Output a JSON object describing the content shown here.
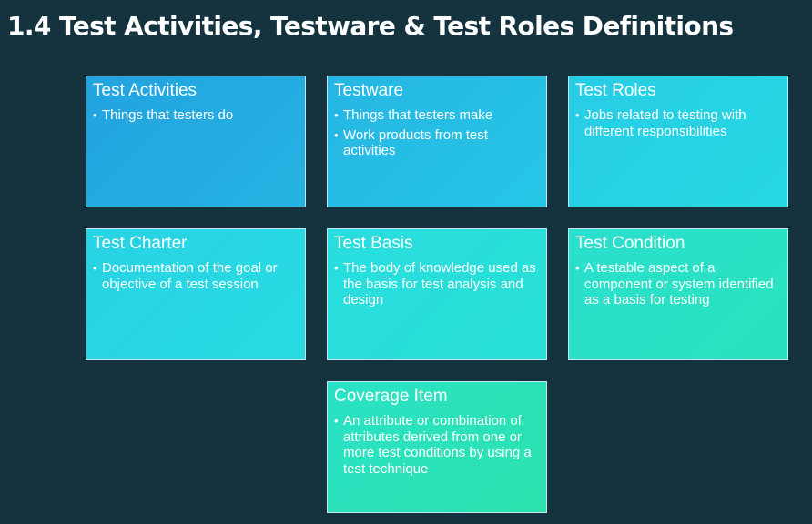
{
  "title": "1.4 Test Activities, Testware & Test Roles Definitions",
  "bullet_glyph": "•",
  "cards": [
    {
      "title": "Test Activities",
      "items": [
        "Things that testers do"
      ]
    },
    {
      "title": "Testware",
      "items": [
        "Things that testers make",
        "Work products from test activities"
      ]
    },
    {
      "title": "Test Roles",
      "items": [
        "Jobs related to testing with different responsibilities"
      ]
    },
    {
      "title": "Test Charter",
      "items": [
        "Documentation of the goal or objective of a test session"
      ]
    },
    {
      "title": "Test Basis",
      "items": [
        "The body of knowledge used as the basis for test analysis and design"
      ]
    },
    {
      "title": "Test Condition",
      "items": [
        "A testable aspect of a component or system identified as a basis for testing"
      ]
    },
    {
      "title": "Coverage Item",
      "items": [
        "An attribute or combination of attributes derived from one or more test conditions by using a test technique"
      ]
    }
  ]
}
